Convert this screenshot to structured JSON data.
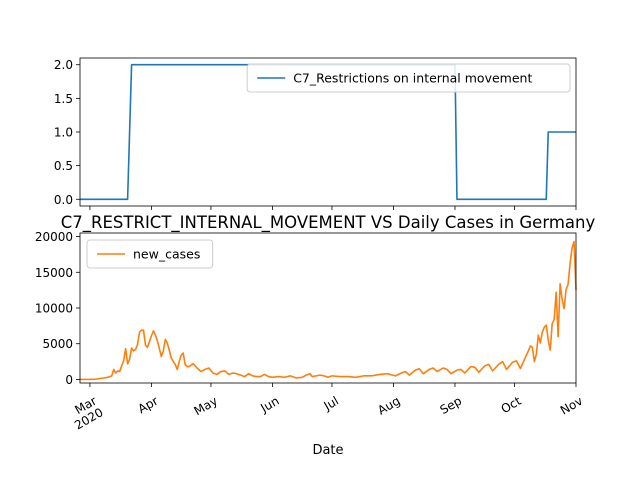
{
  "figure": {
    "xlabel": "Date"
  },
  "chart_data": [
    {
      "type": "line",
      "title": "",
      "xlabel": "Date",
      "ylabel": "",
      "xlim": [
        "2020-02-25",
        "2020-11-01"
      ],
      "ylim": [
        -0.1,
        2.1
      ],
      "yticks": [
        0.0,
        0.5,
        1.0,
        1.5,
        2.0
      ],
      "ytick_labels": [
        "0.0",
        "0.5",
        "1.0",
        "1.5",
        "2.0"
      ],
      "grid": false,
      "legend_position": "upper-right",
      "series": [
        {
          "name": "C7_Restrictions on internal movement",
          "color": "#1f77b4",
          "drawstyle": "line",
          "points": [
            [
              "2020-02-25",
              0
            ],
            [
              "2020-03-20",
              0
            ],
            [
              "2020-03-22",
              2
            ],
            [
              "2020-09-01",
              2
            ],
            [
              "2020-09-02",
              0
            ],
            [
              "2020-10-17",
              0
            ],
            [
              "2020-10-18",
              1
            ],
            [
              "2020-11-01",
              1
            ]
          ]
        }
      ]
    },
    {
      "type": "line",
      "title": "C7_RESTRICT_INTERNAL_MOVEMENT VS Daily Cases in Germany",
      "xlabel": "Date",
      "ylabel": "",
      "xlim": [
        "2020-02-25",
        "2020-11-01"
      ],
      "ylim": [
        -500,
        20500
      ],
      "yticks": [
        0,
        5000,
        10000,
        15000,
        20000
      ],
      "ytick_labels": [
        "0",
        "5000",
        "10000",
        "15000",
        "20000"
      ],
      "xticks": [
        "2020-03-01",
        "2020-04-01",
        "2020-05-01",
        "2020-06-01",
        "2020-07-01",
        "2020-08-01",
        "2020-09-01",
        "2020-10-01",
        "2020-11-01"
      ],
      "xtick_labels": [
        "Mar\n2020",
        "Apr",
        "May",
        "Jun",
        "Jul",
        "Aug",
        "Sep",
        "Oct",
        "Nov"
      ],
      "grid": false,
      "legend_position": "upper-left",
      "series": [
        {
          "name": "new_cases",
          "color": "#ff7f0e",
          "points": [
            [
              "2020-02-25",
              0
            ],
            [
              "2020-03-01",
              10
            ],
            [
              "2020-03-04",
              40
            ],
            [
              "2020-03-06",
              130
            ],
            [
              "2020-03-08",
              200
            ],
            [
              "2020-03-10",
              300
            ],
            [
              "2020-03-12",
              500
            ],
            [
              "2020-03-13",
              1400
            ],
            [
              "2020-03-14",
              900
            ],
            [
              "2020-03-15",
              1200
            ],
            [
              "2020-03-16",
              1100
            ],
            [
              "2020-03-17",
              1900
            ],
            [
              "2020-03-18",
              2600
            ],
            [
              "2020-03-19",
              4300
            ],
            [
              "2020-03-20",
              2200
            ],
            [
              "2020-03-21",
              2800
            ],
            [
              "2020-03-22",
              4400
            ],
            [
              "2020-03-23",
              4000
            ],
            [
              "2020-03-24",
              4200
            ],
            [
              "2020-03-25",
              4900
            ],
            [
              "2020-03-26",
              6600
            ],
            [
              "2020-03-27",
              6900
            ],
            [
              "2020-03-28",
              6900
            ],
            [
              "2020-03-29",
              4800
            ],
            [
              "2020-03-30",
              4500
            ],
            [
              "2020-03-31",
              5300
            ],
            [
              "2020-04-01",
              6100
            ],
            [
              "2020-04-02",
              6800
            ],
            [
              "2020-04-03",
              6200
            ],
            [
              "2020-04-04",
              5400
            ],
            [
              "2020-04-05",
              4300
            ],
            [
              "2020-04-06",
              3200
            ],
            [
              "2020-04-07",
              4000
            ],
            [
              "2020-04-08",
              5600
            ],
            [
              "2020-04-09",
              5100
            ],
            [
              "2020-04-10",
              4100
            ],
            [
              "2020-04-11",
              3000
            ],
            [
              "2020-04-12",
              2500
            ],
            [
              "2020-04-13",
              2100
            ],
            [
              "2020-04-14",
              1400
            ],
            [
              "2020-04-15",
              2500
            ],
            [
              "2020-04-16",
              3400
            ],
            [
              "2020-04-17",
              3700
            ],
            [
              "2020-04-18",
              2100
            ],
            [
              "2020-04-19",
              1800
            ],
            [
              "2020-04-20",
              1800
            ],
            [
              "2020-04-22",
              2200
            ],
            [
              "2020-04-24",
              1600
            ],
            [
              "2020-04-26",
              1100
            ],
            [
              "2020-04-28",
              1400
            ],
            [
              "2020-04-30",
              1600
            ],
            [
              "2020-05-02",
              900
            ],
            [
              "2020-05-04",
              700
            ],
            [
              "2020-05-06",
              1100
            ],
            [
              "2020-05-08",
              1200
            ],
            [
              "2020-05-10",
              700
            ],
            [
              "2020-05-12",
              900
            ],
            [
              "2020-05-14",
              800
            ],
            [
              "2020-05-16",
              600
            ],
            [
              "2020-05-18",
              400
            ],
            [
              "2020-05-20",
              800
            ],
            [
              "2020-05-22",
              500
            ],
            [
              "2020-05-24",
              400
            ],
            [
              "2020-05-26",
              400
            ],
            [
              "2020-05-28",
              700
            ],
            [
              "2020-05-30",
              400
            ],
            [
              "2020-06-01",
              300
            ],
            [
              "2020-06-04",
              400
            ],
            [
              "2020-06-07",
              300
            ],
            [
              "2020-06-10",
              500
            ],
            [
              "2020-06-13",
              200
            ],
            [
              "2020-06-16",
              300
            ],
            [
              "2020-06-18",
              600
            ],
            [
              "2020-06-20",
              800
            ],
            [
              "2020-06-21",
              400
            ],
            [
              "2020-06-23",
              500
            ],
            [
              "2020-06-25",
              600
            ],
            [
              "2020-06-27",
              500
            ],
            [
              "2020-06-29",
              300
            ],
            [
              "2020-07-01",
              500
            ],
            [
              "2020-07-05",
              400
            ],
            [
              "2020-07-09",
              400
            ],
            [
              "2020-07-13",
              300
            ],
            [
              "2020-07-17",
              500
            ],
            [
              "2020-07-21",
              500
            ],
            [
              "2020-07-25",
              700
            ],
            [
              "2020-07-29",
              800
            ],
            [
              "2020-08-02",
              500
            ],
            [
              "2020-08-05",
              900
            ],
            [
              "2020-08-07",
              1100
            ],
            [
              "2020-08-09",
              600
            ],
            [
              "2020-08-12",
              1300
            ],
            [
              "2020-08-14",
              1500
            ],
            [
              "2020-08-16",
              800
            ],
            [
              "2020-08-19",
              1400
            ],
            [
              "2020-08-21",
              1600
            ],
            [
              "2020-08-23",
              1100
            ],
            [
              "2020-08-26",
              1600
            ],
            [
              "2020-08-28",
              1400
            ],
            [
              "2020-08-30",
              800
            ],
            [
              "2020-09-02",
              1300
            ],
            [
              "2020-09-04",
              1400
            ],
            [
              "2020-09-06",
              900
            ],
            [
              "2020-09-09",
              1800
            ],
            [
              "2020-09-11",
              1700
            ],
            [
              "2020-09-13",
              1000
            ],
            [
              "2020-09-16",
              1900
            ],
            [
              "2020-09-18",
              2100
            ],
            [
              "2020-09-20",
              1200
            ],
            [
              "2020-09-23",
              2100
            ],
            [
              "2020-09-25",
              2500
            ],
            [
              "2020-09-27",
              1400
            ],
            [
              "2020-09-30",
              2400
            ],
            [
              "2020-10-02",
              2600
            ],
            [
              "2020-10-04",
              1500
            ],
            [
              "2020-10-06",
              2800
            ],
            [
              "2020-10-08",
              4000
            ],
            [
              "2020-10-09",
              4700
            ],
            [
              "2020-10-10",
              4500
            ],
            [
              "2020-10-11",
              2500
            ],
            [
              "2020-10-12",
              3500
            ],
            [
              "2020-10-13",
              6200
            ],
            [
              "2020-10-14",
              5100
            ],
            [
              "2020-10-15",
              6600
            ],
            [
              "2020-10-16",
              7300
            ],
            [
              "2020-10-17",
              7600
            ],
            [
              "2020-10-18",
              5500
            ],
            [
              "2020-10-19",
              4100
            ],
            [
              "2020-10-20",
              7800
            ],
            [
              "2020-10-21",
              8400
            ],
            [
              "2020-10-22",
              12200
            ],
            [
              "2020-10-23",
              6000
            ],
            [
              "2020-10-24",
              13400
            ],
            [
              "2020-10-25",
              11200
            ],
            [
              "2020-10-26",
              9900
            ],
            [
              "2020-10-27",
              12600
            ],
            [
              "2020-10-28",
              13300
            ],
            [
              "2020-10-29",
              16200
            ],
            [
              "2020-10-30",
              18400
            ],
            [
              "2020-10-31",
              19300
            ],
            [
              "2020-11-01",
              12500
            ]
          ]
        }
      ]
    }
  ]
}
